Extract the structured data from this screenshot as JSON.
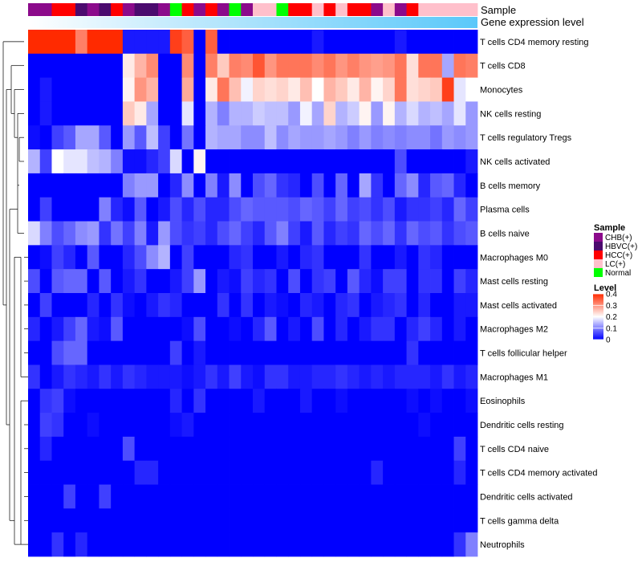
{
  "chart_data": {
    "type": "heatmap",
    "title": "",
    "annotation_labels": {
      "sample": "Sample",
      "gene_expression": "Gene expression level"
    },
    "rows": [
      "T cells CD4 memory resting",
      "T cells CD8",
      "Monocytes",
      "NK cells resting",
      "T cells regulatory  Tregs",
      "NK cells activated",
      "B cells memory",
      "Plasma cells",
      "B cells naive",
      "Macrophages M0",
      "Mast cells resting",
      "Mast cells activated",
      "Macrophages M2",
      "T cells follicular helper",
      "Macrophages M1",
      "Eosinophils",
      "Dendritic cells resting",
      "T cells CD4 naive",
      "T cells CD4 memory activated",
      "Dendritic cells activated",
      "T cells gamma delta",
      "Neutrophils"
    ],
    "sample_groups": [
      "CHB",
      "CHB",
      "HCC",
      "HCC",
      "HBVC",
      "CHB",
      "HBVC",
      "HCC",
      "CHB",
      "HBVC",
      "HBVC",
      "CHB",
      "Normal",
      "HCC",
      "CHB",
      "HCC",
      "CHB",
      "Normal",
      "CHB",
      "LC",
      "LC",
      "Normal",
      "HCC",
      "HCC",
      "LC",
      "HCC",
      "LC",
      "HCC",
      "HCC",
      "CHB",
      "LC",
      "CHB",
      "HCC",
      "LC",
      "LC",
      "LC",
      "LC",
      "LC"
    ],
    "legend_sample": {
      "title": "Sample",
      "entries": [
        {
          "label": "CHB(+)",
          "color": "#8b0a8b"
        },
        {
          "label": "HBVC(+)",
          "color": "#4b0a6e"
        },
        {
          "label": "HCC(+)",
          "color": "#ff0000"
        },
        {
          "label": "LC(+)",
          "color": "#ffc0cb"
        },
        {
          "label": "Normal",
          "color": "#00ff00"
        }
      ]
    },
    "legend_level": {
      "title": "Level",
      "ticks": [
        "0.4",
        "0.3",
        "0.2",
        "0.1",
        "0"
      ],
      "tick_values": [
        0.4,
        0.3,
        0.2,
        0.1,
        0
      ],
      "range": [
        0,
        0.4
      ],
      "colors": {
        "low": "#0000ff",
        "mid": "#ffffff",
        "high": "#ff2a00"
      }
    },
    "gene_bar_colors": {
      "left": "#ffffff",
      "right": "#5ac8fa"
    },
    "colors": {
      "CHB": "#8b0a8b",
      "HBVC": "#4b0a6e",
      "HCC": "#ff0000",
      "LC": "#ffc0cb",
      "Normal": "#00ff00"
    },
    "values": [
      [
        0.4,
        0.4,
        0.4,
        0.4,
        0.32,
        0.4,
        0.4,
        0.4,
        0.02,
        0.02,
        0.02,
        0.02,
        0.38,
        0.35,
        0.0,
        0.35,
        0.0,
        0.0,
        0.0,
        0.0,
        0.0,
        0.0,
        0.0,
        0.0,
        0.02,
        0.0,
        0.0,
        0.0,
        0.0,
        0.0,
        0.0,
        0.02,
        0.0,
        0.0,
        0.0,
        0.0,
        0.0,
        0.0
      ],
      [
        0.0,
        0.0,
        0.0,
        0.0,
        0.0,
        0.0,
        0.0,
        0.0,
        0.22,
        0.27,
        0.31,
        0.0,
        0.0,
        0.31,
        0.0,
        0.32,
        0.25,
        0.32,
        0.31,
        0.36,
        0.3,
        0.33,
        0.33,
        0.33,
        0.31,
        0.33,
        0.3,
        0.32,
        0.3,
        0.29,
        0.3,
        0.33,
        0.23,
        0.33,
        0.33,
        0.13,
        0.33,
        0.32
      ],
      [
        0.0,
        0.02,
        0.0,
        0.0,
        0.0,
        0.0,
        0.0,
        0.0,
        0.21,
        0.3,
        0.27,
        0.0,
        0.0,
        0.28,
        0.0,
        0.22,
        0.33,
        0.26,
        0.19,
        0.24,
        0.23,
        0.24,
        0.22,
        0.26,
        0.2,
        0.27,
        0.25,
        0.22,
        0.27,
        0.21,
        0.24,
        0.33,
        0.23,
        0.24,
        0.25,
        0.38,
        0.18,
        0.2
      ],
      [
        0.0,
        0.02,
        0.0,
        0.0,
        0.0,
        0.0,
        0.0,
        0.0,
        0.25,
        0.22,
        0.13,
        0.0,
        0.0,
        0.18,
        0.0,
        0.14,
        0.1,
        0.14,
        0.14,
        0.16,
        0.15,
        0.15,
        0.12,
        0.19,
        0.13,
        0.24,
        0.14,
        0.16,
        0.21,
        0.12,
        0.21,
        0.14,
        0.17,
        0.14,
        0.15,
        0.13,
        0.18,
        0.12
      ],
      [
        0.01,
        0.0,
        0.05,
        0.07,
        0.13,
        0.13,
        0.07,
        0.0,
        0.12,
        0.07,
        0.15,
        0.05,
        0.0,
        0.09,
        0.0,
        0.14,
        0.13,
        0.13,
        0.11,
        0.11,
        0.15,
        0.11,
        0.13,
        0.12,
        0.12,
        0.13,
        0.12,
        0.1,
        0.12,
        0.1,
        0.11,
        0.1,
        0.11,
        0.11,
        0.09,
        0.12,
        0.11,
        0.12
      ],
      [
        0.14,
        0.05,
        0.2,
        0.18,
        0.18,
        0.15,
        0.14,
        0.1,
        0.01,
        0.01,
        0.03,
        0.05,
        0.17,
        0.0,
        0.21,
        0.0,
        0.0,
        0.0,
        0.0,
        0.0,
        0.0,
        0.0,
        0.0,
        0.0,
        0.0,
        0.0,
        0.0,
        0.0,
        0.0,
        0.0,
        0.0,
        0.06,
        0.0,
        0.0,
        0.0,
        0.0,
        0.0,
        0.02
      ],
      [
        0.0,
        0.0,
        0.0,
        0.0,
        0.0,
        0.0,
        0.0,
        0.0,
        0.1,
        0.12,
        0.12,
        0.0,
        0.03,
        0.11,
        0.0,
        0.1,
        0.02,
        0.11,
        0.0,
        0.06,
        0.08,
        0.04,
        0.03,
        0.0,
        0.06,
        0.0,
        0.08,
        0.0,
        0.13,
        0.04,
        0.0,
        0.08,
        0.11,
        0.03,
        0.07,
        0.08,
        0.03,
        0.0
      ],
      [
        0.0,
        0.05,
        0.0,
        0.0,
        0.0,
        0.0,
        0.1,
        0.03,
        0.01,
        0.07,
        0.0,
        0.02,
        0.06,
        0.03,
        0.06,
        0.03,
        0.03,
        0.06,
        0.08,
        0.07,
        0.07,
        0.07,
        0.06,
        0.08,
        0.07,
        0.05,
        0.08,
        0.05,
        0.06,
        0.04,
        0.06,
        0.02,
        0.04,
        0.04,
        0.05,
        0.03,
        0.08,
        0.05
      ],
      [
        0.17,
        0.1,
        0.06,
        0.08,
        0.11,
        0.12,
        0.04,
        0.09,
        0.05,
        0.1,
        0.02,
        0.12,
        0.06,
        0.04,
        0.05,
        0.03,
        0.06,
        0.08,
        0.05,
        0.03,
        0.07,
        0.1,
        0.05,
        0.02,
        0.07,
        0.03,
        0.05,
        0.04,
        0.08,
        0.06,
        0.08,
        0.04,
        0.08,
        0.06,
        0.07,
        0.04,
        0.06,
        0.07
      ],
      [
        0.0,
        0.01,
        0.05,
        0.03,
        0.0,
        0.07,
        0.0,
        0.0,
        0.03,
        0.06,
        0.11,
        0.14,
        0.0,
        0.05,
        0.0,
        0.0,
        0.0,
        0.03,
        0.04,
        0.0,
        0.0,
        0.02,
        0.0,
        0.03,
        0.04,
        0.0,
        0.0,
        0.0,
        0.04,
        0.0,
        0.0,
        0.02,
        0.0,
        0.04,
        0.03,
        0.0,
        0.0,
        0.0
      ],
      [
        0.06,
        0.0,
        0.07,
        0.08,
        0.08,
        0.0,
        0.07,
        0.0,
        0.02,
        0.04,
        0.0,
        0.0,
        0.02,
        0.05,
        0.12,
        0.0,
        0.02,
        0.01,
        0.05,
        0.03,
        0.04,
        0.0,
        0.06,
        0.0,
        0.04,
        0.05,
        0.0,
        0.07,
        0.03,
        0.01,
        0.05,
        0.05,
        0.0,
        0.04,
        0.04,
        0.0,
        0.05,
        0.03
      ],
      [
        0.0,
        0.05,
        0.0,
        0.0,
        0.0,
        0.03,
        0.0,
        0.04,
        0.01,
        0.0,
        0.02,
        0.04,
        0.03,
        0.0,
        0.0,
        0.0,
        0.04,
        0.0,
        0.04,
        0.0,
        0.02,
        0.01,
        0.0,
        0.03,
        0.02,
        0.0,
        0.03,
        0.04,
        0.0,
        0.02,
        0.03,
        0.04,
        0.0,
        0.03,
        0.0,
        0.0,
        0.02,
        0.02
      ],
      [
        0.03,
        0.0,
        0.02,
        0.05,
        0.08,
        0.02,
        0.01,
        0.07,
        0.0,
        0.0,
        0.0,
        0.0,
        0.0,
        0.01,
        0.06,
        0.0,
        0.0,
        0.01,
        0.0,
        0.03,
        0.07,
        0.0,
        0.02,
        0.0,
        0.06,
        0.0,
        0.03,
        0.0,
        0.02,
        0.04,
        0.04,
        0.0,
        0.03,
        0.05,
        0.03,
        0.0,
        0.02,
        0.0
      ],
      [
        0.0,
        0.0,
        0.06,
        0.08,
        0.08,
        0.0,
        0.0,
        0.0,
        0.0,
        0.0,
        0.0,
        0.0,
        0.05,
        0.0,
        0.02,
        0.0,
        0.0,
        0.0,
        0.0,
        0.0,
        0.0,
        0.0,
        0.0,
        0.0,
        0.0,
        0.0,
        0.0,
        0.0,
        0.0,
        0.0,
        0.0,
        0.0,
        0.04,
        0.0,
        0.0,
        0.0,
        0.0,
        0.0
      ],
      [
        0.04,
        0.0,
        0.02,
        0.04,
        0.03,
        0.02,
        0.04,
        0.02,
        0.04,
        0.03,
        0.02,
        0.02,
        0.02,
        0.01,
        0.02,
        0.04,
        0.02,
        0.05,
        0.02,
        0.01,
        0.04,
        0.04,
        0.02,
        0.02,
        0.03,
        0.03,
        0.04,
        0.03,
        0.02,
        0.03,
        0.02,
        0.03,
        0.03,
        0.03,
        0.02,
        0.04,
        0.02,
        0.03
      ],
      [
        0.0,
        0.04,
        0.05,
        0.01,
        0.0,
        0.0,
        0.0,
        0.0,
        0.0,
        0.0,
        0.0,
        0.0,
        0.03,
        0.0,
        0.04,
        0.0,
        0.0,
        0.0,
        0.0,
        0.02,
        0.0,
        0.0,
        0.0,
        0.02,
        0.0,
        0.0,
        0.01,
        0.0,
        0.0,
        0.0,
        0.0,
        0.0,
        0.01,
        0.0,
        0.01,
        0.0,
        0.0,
        0.01
      ],
      [
        0.0,
        0.05,
        0.04,
        0.0,
        0.0,
        0.01,
        0.0,
        0.0,
        0.0,
        0.0,
        0.0,
        0.0,
        0.01,
        0.02,
        0.0,
        0.0,
        0.0,
        0.0,
        0.0,
        0.0,
        0.0,
        0.0,
        0.0,
        0.0,
        0.0,
        0.0,
        0.0,
        0.0,
        0.0,
        0.0,
        0.0,
        0.0,
        0.0,
        0.01,
        0.0,
        0.0,
        0.0,
        0.0
      ],
      [
        0.0,
        0.03,
        0.0,
        0.0,
        0.0,
        0.0,
        0.0,
        0.0,
        0.06,
        0.0,
        0.0,
        0.0,
        0.0,
        0.0,
        0.0,
        0.0,
        0.0,
        0.0,
        0.0,
        0.0,
        0.0,
        0.0,
        0.0,
        0.0,
        0.0,
        0.0,
        0.0,
        0.0,
        0.0,
        0.0,
        0.0,
        0.0,
        0.0,
        0.0,
        0.0,
        0.0,
        0.05,
        0.0
      ],
      [
        0.0,
        0.0,
        0.0,
        0.0,
        0.0,
        0.0,
        0.0,
        0.0,
        0.0,
        0.03,
        0.03,
        0.0,
        0.0,
        0.0,
        0.0,
        0.0,
        0.0,
        0.0,
        0.0,
        0.0,
        0.0,
        0.0,
        0.0,
        0.0,
        0.0,
        0.0,
        0.0,
        0.0,
        0.0,
        0.03,
        0.0,
        0.0,
        0.0,
        0.0,
        0.0,
        0.0,
        0.03,
        0.0
      ],
      [
        0.0,
        0.0,
        0.0,
        0.05,
        0.0,
        0.0,
        0.05,
        0.0,
        0.0,
        0.0,
        0.0,
        0.0,
        0.0,
        0.0,
        0.0,
        0.0,
        0.0,
        0.0,
        0.0,
        0.0,
        0.0,
        0.0,
        0.0,
        0.0,
        0.0,
        0.0,
        0.0,
        0.0,
        0.0,
        0.0,
        0.0,
        0.0,
        0.0,
        0.0,
        0.0,
        0.0,
        0.0,
        0.0
      ],
      [
        0.0,
        0.0,
        0.0,
        0.0,
        0.0,
        0.0,
        0.0,
        0.0,
        0.0,
        0.0,
        0.0,
        0.0,
        0.0,
        0.0,
        0.0,
        0.0,
        0.0,
        0.0,
        0.0,
        0.0,
        0.0,
        0.0,
        0.0,
        0.0,
        0.0,
        0.0,
        0.0,
        0.0,
        0.0,
        0.0,
        0.0,
        0.0,
        0.0,
        0.0,
        0.0,
        0.0,
        0.0,
        0.0
      ],
      [
        0.0,
        0.0,
        0.04,
        0.0,
        0.03,
        0.0,
        0.0,
        0.0,
        0.0,
        0.0,
        0.0,
        0.0,
        0.0,
        0.0,
        0.0,
        0.0,
        0.0,
        0.0,
        0.0,
        0.0,
        0.0,
        0.0,
        0.0,
        0.0,
        0.0,
        0.0,
        0.0,
        0.0,
        0.0,
        0.0,
        0.0,
        0.0,
        0.0,
        0.0,
        0.0,
        0.0,
        0.04,
        0.1
      ]
    ]
  }
}
